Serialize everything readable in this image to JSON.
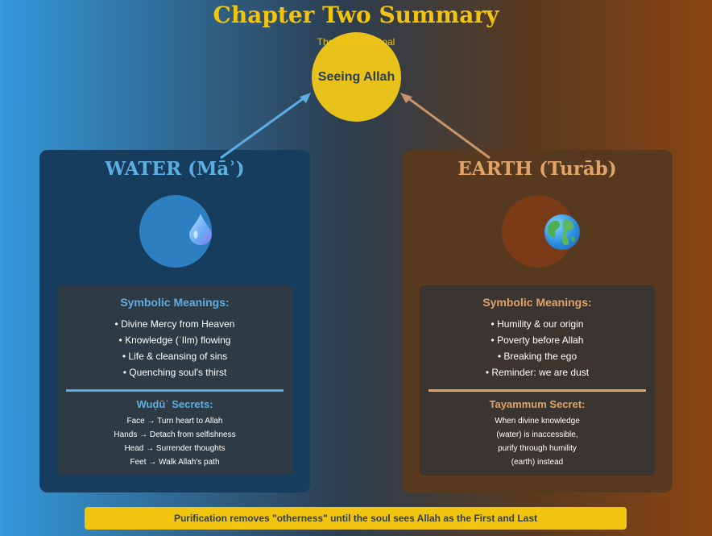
{
  "title": "Chapter Two Summary",
  "goal": {
    "subtitle": "The Ultimate Goal",
    "label": "Seeing Allah"
  },
  "water": {
    "title": "WATER (Māʾ)",
    "icon": "water-drop-icon",
    "meanings_heading": "Symbolic Meanings:",
    "meanings": [
      "• Divine Mercy from Heaven",
      "• Knowledge (ʿIlm) flowing",
      "• Life & cleansing of sins",
      "• Quenching soul's thirst"
    ],
    "secrets_heading": "Wuḍūʾ Secrets:",
    "secrets": [
      "Face → Turn heart to Allah",
      "Hands → Detach from selfishness",
      "Head → Surrender thoughts",
      "Feet → Walk Allah's path"
    ]
  },
  "earth": {
    "title": "EARTH (Turāb)",
    "icon": "earth-globe-icon",
    "meanings_heading": "Symbolic Meanings:",
    "meanings": [
      "• Humility & our origin",
      "• Poverty before Allah",
      "• Breaking the ego",
      "• Reminder: we are dust"
    ],
    "secrets_heading": "Tayammum Secret:",
    "secrets": [
      "When divine knowledge",
      "(water) is inaccessible,",
      "purify through humility",
      "(earth) instead"
    ]
  },
  "footer": "Purification removes \"otherness\" until the soul sees Allah as the First and Last",
  "colors": {
    "gold": "#f1c40f",
    "water_accent": "#5dade2",
    "earth_accent": "#e0a36a",
    "dark_text": "#2c3e50"
  }
}
